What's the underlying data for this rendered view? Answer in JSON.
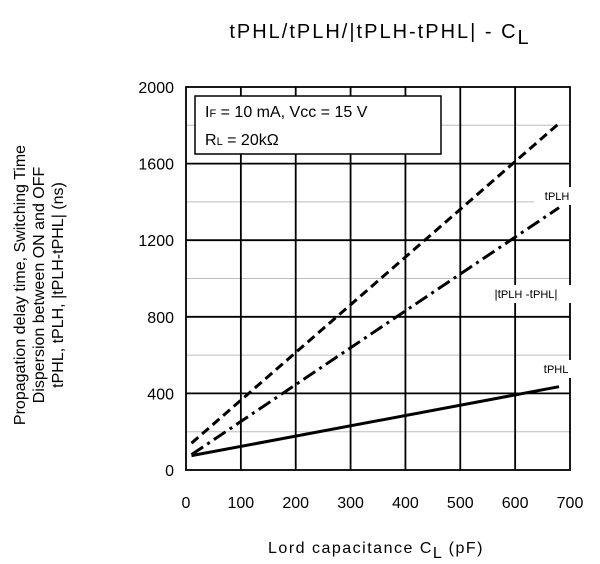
{
  "chart_data": {
    "type": "line",
    "title": {
      "main": "tPHL/tPLH/|tPLH-tPHL| - C",
      "subscript": "L"
    },
    "xlabel": {
      "main": "Lord capacitance C",
      "subscript": "L",
      "unit": " (pF)"
    },
    "ylabel_lines": [
      "Propagation delay time, Switching Time",
      "Dispersion between ON and OFF",
      "tPHL, tPLH, |tPLH-tPHL| (ns)"
    ],
    "xlim": [
      0,
      700
    ],
    "ylim": [
      0,
      2000
    ],
    "x_ticks": [
      "0",
      "100",
      "200",
      "300",
      "400",
      "500",
      "600",
      "700"
    ],
    "y_ticks": [
      "0",
      "400",
      "800",
      "1200",
      "1600",
      "2000"
    ],
    "grid": true,
    "conditions": {
      "line1": {
        "a": "I",
        "a_sub": "F",
        "b": " = 10 mA, Vcc = 15 V"
      },
      "line2": {
        "a": "R",
        "a_sub": "L",
        "b": " = 20kΩ"
      }
    },
    "series": [
      {
        "name": "tPLH",
        "label_parts": [
          [
            "t",
            ""
          ],
          [
            "PLH",
            "s"
          ]
        ],
        "style": "dashed",
        "x": [
          10,
          680
        ],
        "y": [
          140,
          1810
        ]
      },
      {
        "name": "|tPLH -tPHL|",
        "label_parts": [
          [
            "|t",
            ""
          ],
          [
            "PLH",
            "s"
          ],
          [
            " -t",
            ""
          ],
          [
            "PHL",
            "s"
          ],
          [
            "|",
            ""
          ]
        ],
        "style": "dashdot",
        "x": [
          10,
          680
        ],
        "y": [
          80,
          1370
        ]
      },
      {
        "name": "tPHL",
        "label_parts": [
          [
            "t",
            ""
          ],
          [
            "PHL",
            "s"
          ]
        ],
        "style": "solid",
        "x": [
          10,
          680
        ],
        "y": [
          75,
          435
        ]
      }
    ]
  }
}
